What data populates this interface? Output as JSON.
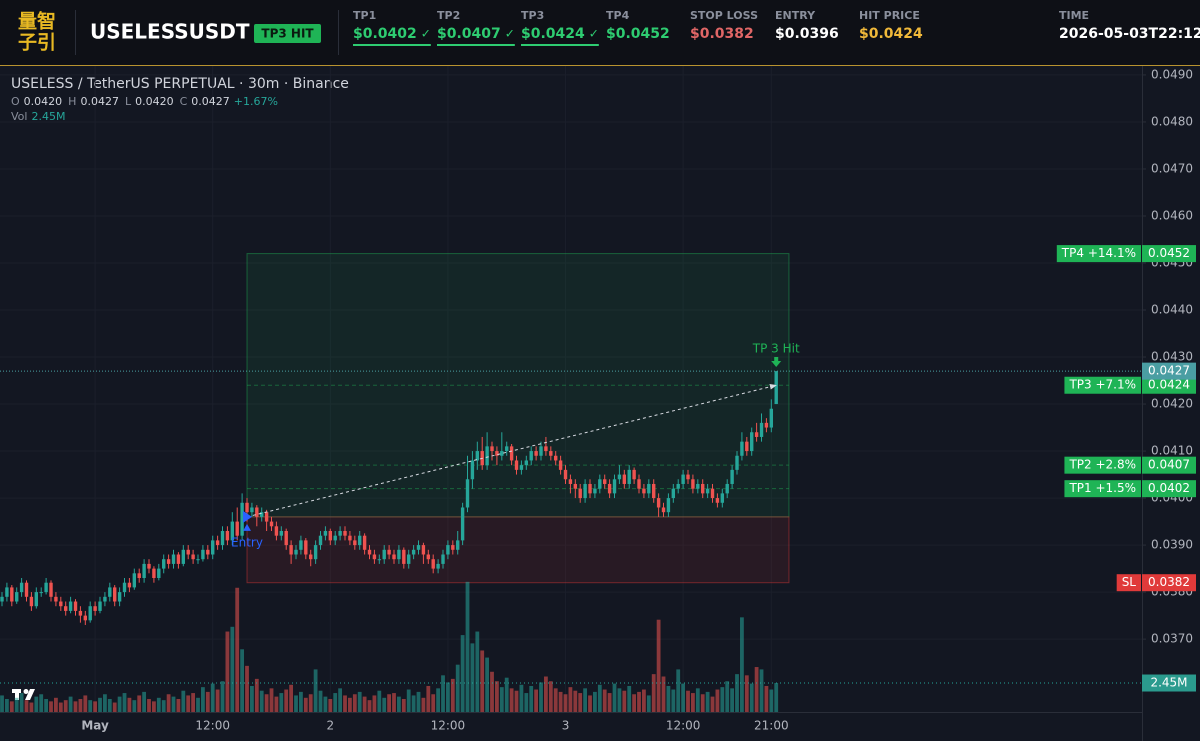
{
  "header": {
    "logo": [
      "量智",
      "子引"
    ],
    "symbol": "USELESSUSDT",
    "badge": "TP3 HIT",
    "fields": [
      {
        "label": "TP1",
        "value": "$0.0402",
        "check": "✓",
        "color": "#2ecc71"
      },
      {
        "label": "TP2",
        "value": "$0.0407",
        "check": "✓",
        "color": "#2ecc71"
      },
      {
        "label": "TP3",
        "value": "$0.0424",
        "check": "✓",
        "color": "#2ecc71"
      },
      {
        "label": "TP4",
        "value": "$0.0452",
        "color": "#2ecc71"
      },
      {
        "label": "STOP LOSS",
        "value": "$0.0382",
        "color": "#e06666"
      },
      {
        "label": "ENTRY",
        "value": "$0.0396",
        "color": "#ffffff"
      },
      {
        "label": "HIT PRICE",
        "value": "$0.0424",
        "color": "#f0b93a"
      },
      {
        "label": "TIME",
        "value": "2026-05-03T22:12",
        "color": "#ffffff"
      }
    ]
  },
  "chart_data": {
    "type": "candlestick",
    "title": "USELESS / TetherUS PERPETUAL · 30m · Binance",
    "legend": {
      "ohlc": [
        {
          "key": "O",
          "value": "0.0420"
        },
        {
          "key": "H",
          "value": "0.0427"
        },
        {
          "key": "L",
          "value": "0.0420"
        },
        {
          "key": "C",
          "value": "0.0427"
        }
      ],
      "change": "+1.67%",
      "vol_key": "Vol",
      "vol": "2.45M"
    },
    "up_color": "#26a69a",
    "down_color": "#ef5350",
    "grid": true,
    "ylim": [
      0.03545,
      0.04919
    ],
    "yticks": [
      {
        "value": 0.049,
        "label": "0.0490"
      },
      {
        "value": 0.048,
        "label": "0.0480"
      },
      {
        "value": 0.047,
        "label": "0.0470"
      },
      {
        "value": 0.046,
        "label": "0.0460"
      },
      {
        "value": 0.045,
        "label": "0.0450"
      },
      {
        "value": 0.044,
        "label": "0.0440"
      },
      {
        "value": 0.043,
        "label": "0.0430"
      },
      {
        "value": 0.042,
        "label": "0.0420"
      },
      {
        "value": 0.041,
        "label": "0.0410"
      },
      {
        "value": 0.04,
        "label": "0.0400"
      },
      {
        "value": 0.039,
        "label": "0.0390"
      },
      {
        "value": 0.038,
        "label": "0.0380"
      },
      {
        "value": 0.037,
        "label": "0.0370"
      }
    ],
    "xlim": [
      -0.41,
      232.65
    ],
    "xticks": [
      {
        "value": 19,
        "label": "May"
      },
      {
        "value": 43,
        "label": "12:00"
      },
      {
        "value": 67,
        "label": "2"
      },
      {
        "value": 91,
        "label": "12:00"
      },
      {
        "value": 115,
        "label": "3"
      },
      {
        "value": 139,
        "label": "12:00"
      },
      {
        "value": 157,
        "label": "21:00"
      }
    ],
    "candles": [
      [
        0.0378,
        0.038,
        0.0377,
        0.0379
      ],
      [
        0.0379,
        0.0382,
        0.0378,
        0.0381
      ],
      [
        0.0381,
        0.03815,
        0.0377,
        0.0378
      ],
      [
        0.0378,
        0.0381,
        0.03775,
        0.038
      ],
      [
        0.038,
        0.0383,
        0.0379,
        0.0382
      ],
      [
        0.0382,
        0.03825,
        0.0378,
        0.0379
      ],
      [
        0.0379,
        0.038,
        0.0376,
        0.0377
      ],
      [
        0.0377,
        0.0381,
        0.03765,
        0.038
      ],
      [
        0.038,
        0.0381,
        0.0379,
        0.038
      ],
      [
        0.038,
        0.0383,
        0.03795,
        0.0382
      ],
      [
        0.0382,
        0.03825,
        0.0378,
        0.0379
      ],
      [
        0.0379,
        0.038,
        0.0377,
        0.0378
      ],
      [
        0.0378,
        0.0379,
        0.0376,
        0.0377
      ],
      [
        0.0377,
        0.0378,
        0.0375,
        0.0376
      ],
      [
        0.0376,
        0.0379,
        0.03755,
        0.0378
      ],
      [
        0.0378,
        0.03785,
        0.0375,
        0.0376
      ],
      [
        0.0376,
        0.0377,
        0.03735,
        0.0375
      ],
      [
        0.0375,
        0.0376,
        0.0373,
        0.0374
      ],
      [
        0.0374,
        0.0378,
        0.03735,
        0.0377
      ],
      [
        0.0377,
        0.0378,
        0.0375,
        0.0376
      ],
      [
        0.0376,
        0.0379,
        0.03755,
        0.0378
      ],
      [
        0.0378,
        0.038,
        0.0377,
        0.0379
      ],
      [
        0.0379,
        0.0382,
        0.0378,
        0.0381
      ],
      [
        0.0381,
        0.03815,
        0.0377,
        0.0378
      ],
      [
        0.0378,
        0.0381,
        0.0377,
        0.038
      ],
      [
        0.038,
        0.0383,
        0.0379,
        0.0382
      ],
      [
        0.0382,
        0.0383,
        0.038,
        0.0381
      ],
      [
        0.0381,
        0.0385,
        0.03805,
        0.0384
      ],
      [
        0.0384,
        0.0385,
        0.0382,
        0.0383
      ],
      [
        0.0383,
        0.0387,
        0.0382,
        0.0386
      ],
      [
        0.0386,
        0.0387,
        0.0384,
        0.0385
      ],
      [
        0.0385,
        0.03855,
        0.0382,
        0.0383
      ],
      [
        0.0383,
        0.0386,
        0.03825,
        0.0385
      ],
      [
        0.0385,
        0.0388,
        0.0384,
        0.0387
      ],
      [
        0.0387,
        0.0388,
        0.0385,
        0.0386
      ],
      [
        0.0386,
        0.0389,
        0.0385,
        0.0388
      ],
      [
        0.0388,
        0.03885,
        0.0385,
        0.0386
      ],
      [
        0.0386,
        0.039,
        0.03855,
        0.0389
      ],
      [
        0.0389,
        0.039,
        0.0387,
        0.0388
      ],
      [
        0.0388,
        0.0389,
        0.0386,
        0.0387
      ],
      [
        0.0387,
        0.0388,
        0.0386,
        0.0387
      ],
      [
        0.0387,
        0.039,
        0.03865,
        0.0389
      ],
      [
        0.0389,
        0.039,
        0.0387,
        0.0388
      ],
      [
        0.0388,
        0.0392,
        0.0387,
        0.0391
      ],
      [
        0.0391,
        0.0392,
        0.0389,
        0.039
      ],
      [
        0.039,
        0.0394,
        0.0389,
        0.0393
      ],
      [
        0.0393,
        0.0394,
        0.039,
        0.0391
      ],
      [
        0.0391,
        0.0397,
        0.039,
        0.0395
      ],
      [
        0.0395,
        0.0398,
        0.0391,
        0.0392
      ],
      [
        0.0392,
        0.0401,
        0.0391,
        0.0399
      ],
      [
        0.0399,
        0.04,
        0.0395,
        0.0397
      ],
      [
        0.0397,
        0.0399,
        0.0396,
        0.0398
      ],
      [
        0.0398,
        0.03985,
        0.0394,
        0.0396
      ],
      [
        0.0396,
        0.0398,
        0.0395,
        0.0397
      ],
      [
        0.0397,
        0.03975,
        0.0393,
        0.0395
      ],
      [
        0.0395,
        0.0396,
        0.0393,
        0.0394
      ],
      [
        0.0394,
        0.0395,
        0.0391,
        0.0392
      ],
      [
        0.0392,
        0.0394,
        0.0391,
        0.0393
      ],
      [
        0.0393,
        0.03935,
        0.0389,
        0.039
      ],
      [
        0.039,
        0.0391,
        0.0386,
        0.0388
      ],
      [
        0.0388,
        0.039,
        0.0387,
        0.0389
      ],
      [
        0.0389,
        0.0392,
        0.0388,
        0.0391
      ],
      [
        0.0391,
        0.03915,
        0.0387,
        0.0388
      ],
      [
        0.0388,
        0.0389,
        0.03855,
        0.0387
      ],
      [
        0.0387,
        0.0391,
        0.0386,
        0.039
      ],
      [
        0.039,
        0.0393,
        0.0389,
        0.0392
      ],
      [
        0.0392,
        0.0394,
        0.0391,
        0.0393
      ],
      [
        0.0393,
        0.03935,
        0.039,
        0.0391
      ],
      [
        0.0391,
        0.0393,
        0.039,
        0.0392
      ],
      [
        0.0392,
        0.0394,
        0.0391,
        0.0393
      ],
      [
        0.0393,
        0.0394,
        0.0391,
        0.0392
      ],
      [
        0.0392,
        0.0393,
        0.039,
        0.0391
      ],
      [
        0.0391,
        0.0392,
        0.0389,
        0.039
      ],
      [
        0.039,
        0.0393,
        0.0389,
        0.0392
      ],
      [
        0.0392,
        0.03925,
        0.0388,
        0.0389
      ],
      [
        0.0389,
        0.039,
        0.0387,
        0.0388
      ],
      [
        0.0388,
        0.0389,
        0.0386,
        0.0387
      ],
      [
        0.0387,
        0.0388,
        0.0386,
        0.0387
      ],
      [
        0.0387,
        0.039,
        0.0386,
        0.0389
      ],
      [
        0.0389,
        0.039,
        0.0387,
        0.0388
      ],
      [
        0.0388,
        0.0389,
        0.0386,
        0.0387
      ],
      [
        0.0387,
        0.039,
        0.0386,
        0.0389
      ],
      [
        0.0389,
        0.03895,
        0.0385,
        0.0386
      ],
      [
        0.0386,
        0.0389,
        0.0385,
        0.0388
      ],
      [
        0.0388,
        0.039,
        0.0387,
        0.0389
      ],
      [
        0.0389,
        0.0391,
        0.0388,
        0.039
      ],
      [
        0.039,
        0.03905,
        0.0386,
        0.0388
      ],
      [
        0.0388,
        0.0389,
        0.0386,
        0.0387
      ],
      [
        0.0387,
        0.0388,
        0.0384,
        0.0385
      ],
      [
        0.0385,
        0.0387,
        0.0384,
        0.0386
      ],
      [
        0.0386,
        0.0389,
        0.0385,
        0.0388
      ],
      [
        0.0388,
        0.0391,
        0.0387,
        0.039
      ],
      [
        0.039,
        0.0391,
        0.0388,
        0.0389
      ],
      [
        0.0389,
        0.0393,
        0.0388,
        0.0391
      ],
      [
        0.0391,
        0.0399,
        0.039,
        0.0398
      ],
      [
        0.0398,
        0.0409,
        0.0397,
        0.0404
      ],
      [
        0.0404,
        0.041,
        0.0402,
        0.0408
      ],
      [
        0.0408,
        0.0412,
        0.0406,
        0.041
      ],
      [
        0.041,
        0.0413,
        0.0406,
        0.0407
      ],
      [
        0.0407,
        0.0414,
        0.0406,
        0.0411
      ],
      [
        0.0411,
        0.0412,
        0.0408,
        0.041
      ],
      [
        0.041,
        0.0411,
        0.0407,
        0.0409
      ],
      [
        0.0409,
        0.0414,
        0.0408,
        0.041
      ],
      [
        0.041,
        0.0412,
        0.0409,
        0.0411
      ],
      [
        0.0411,
        0.04115,
        0.0407,
        0.0408
      ],
      [
        0.0408,
        0.0409,
        0.0405,
        0.0406
      ],
      [
        0.0406,
        0.0408,
        0.0405,
        0.0407
      ],
      [
        0.0407,
        0.0409,
        0.0406,
        0.0408
      ],
      [
        0.0408,
        0.0411,
        0.0407,
        0.041
      ],
      [
        0.041,
        0.0411,
        0.0408,
        0.0409
      ],
      [
        0.0409,
        0.0412,
        0.0408,
        0.0411
      ],
      [
        0.0411,
        0.0413,
        0.0409,
        0.041
      ],
      [
        0.041,
        0.0411,
        0.0408,
        0.0409
      ],
      [
        0.0409,
        0.041,
        0.0407,
        0.0408
      ],
      [
        0.0408,
        0.0409,
        0.0405,
        0.0406
      ],
      [
        0.0406,
        0.0407,
        0.0403,
        0.0404
      ],
      [
        0.0404,
        0.0405,
        0.0401,
        0.0403
      ],
      [
        0.0403,
        0.0404,
        0.04,
        0.0402
      ],
      [
        0.0402,
        0.0403,
        0.0399,
        0.04
      ],
      [
        0.04,
        0.0404,
        0.0399,
        0.0403
      ],
      [
        0.0403,
        0.0404,
        0.04,
        0.0401
      ],
      [
        0.0401,
        0.0403,
        0.04,
        0.0402
      ],
      [
        0.0402,
        0.0405,
        0.0401,
        0.0404
      ],
      [
        0.0404,
        0.0405,
        0.0402,
        0.0403
      ],
      [
        0.0403,
        0.0404,
        0.04,
        0.0401
      ],
      [
        0.0401,
        0.0405,
        0.04,
        0.0404
      ],
      [
        0.0404,
        0.0407,
        0.0403,
        0.0405
      ],
      [
        0.0405,
        0.0406,
        0.0402,
        0.0403
      ],
      [
        0.0403,
        0.0407,
        0.0402,
        0.0406
      ],
      [
        0.0406,
        0.04065,
        0.0403,
        0.0404
      ],
      [
        0.0404,
        0.0405,
        0.0401,
        0.0402
      ],
      [
        0.0402,
        0.0403,
        0.04,
        0.0401
      ],
      [
        0.0401,
        0.0404,
        0.04,
        0.0403
      ],
      [
        0.0403,
        0.0404,
        0.0399,
        0.04
      ],
      [
        0.04,
        0.0401,
        0.0396,
        0.0398
      ],
      [
        0.0398,
        0.0399,
        0.0396,
        0.0397
      ],
      [
        0.0397,
        0.0401,
        0.0396,
        0.04
      ],
      [
        0.04,
        0.0403,
        0.0399,
        0.0402
      ],
      [
        0.0402,
        0.0404,
        0.0401,
        0.0403
      ],
      [
        0.0403,
        0.0406,
        0.0402,
        0.0405
      ],
      [
        0.0405,
        0.0406,
        0.0403,
        0.0404
      ],
      [
        0.0404,
        0.0405,
        0.0401,
        0.0402
      ],
      [
        0.0402,
        0.0404,
        0.0401,
        0.0403
      ],
      [
        0.0403,
        0.0404,
        0.04,
        0.0401
      ],
      [
        0.0401,
        0.0403,
        0.04,
        0.0402
      ],
      [
        0.0402,
        0.0403,
        0.0399,
        0.04
      ],
      [
        0.04,
        0.0401,
        0.0398,
        0.0399
      ],
      [
        0.0399,
        0.0402,
        0.0398,
        0.0401
      ],
      [
        0.0401,
        0.0404,
        0.04,
        0.0403
      ],
      [
        0.0403,
        0.0407,
        0.0402,
        0.0406
      ],
      [
        0.0406,
        0.041,
        0.0405,
        0.0409
      ],
      [
        0.0409,
        0.0414,
        0.0408,
        0.0412
      ],
      [
        0.0412,
        0.0413,
        0.0409,
        0.041
      ],
      [
        0.041,
        0.0415,
        0.0409,
        0.0414
      ],
      [
        0.0414,
        0.0416,
        0.0412,
        0.0413
      ],
      [
        0.0413,
        0.0418,
        0.0412,
        0.0416
      ],
      [
        0.0416,
        0.0417,
        0.0414,
        0.0415
      ],
      [
        0.0415,
        0.0421,
        0.0414,
        0.0419
      ],
      [
        0.042,
        0.0427,
        0.042,
        0.0427
      ]
    ],
    "volumes": [
      1.4,
      1.1,
      0.9,
      1.2,
      1.6,
      1.0,
      0.8,
      1.3,
      1.5,
      1.1,
      0.9,
      1.2,
      0.8,
      1.0,
      1.3,
      0.9,
      1.1,
      1.4,
      1.0,
      0.9,
      1.2,
      1.5,
      1.1,
      0.8,
      1.3,
      1.6,
      1.2,
      1.0,
      1.4,
      1.7,
      1.1,
      0.9,
      1.2,
      1.0,
      1.5,
      1.3,
      1.1,
      1.8,
      1.4,
      1.6,
      1.2,
      2.1,
      1.7,
      2.4,
      1.9,
      2.6,
      6.8,
      7.2,
      10.5,
      5.3,
      3.9,
      2.2,
      2.8,
      1.8,
      1.5,
      2.0,
      1.3,
      1.6,
      1.9,
      2.3,
      1.4,
      1.7,
      1.2,
      1.5,
      3.6,
      1.8,
      1.3,
      1.1,
      1.6,
      2.0,
      1.4,
      1.2,
      1.5,
      1.7,
      1.3,
      1.0,
      1.4,
      1.8,
      1.2,
      1.5,
      1.6,
      1.3,
      1.1,
      1.9,
      1.4,
      1.7,
      1.2,
      2.2,
      1.5,
      2.0,
      3.1,
      2.5,
      2.8,
      4.0,
      6.5,
      11.0,
      5.8,
      6.8,
      5.2,
      4.6,
      3.4,
      2.6,
      2.1,
      2.9,
      2.0,
      1.8,
      2.3,
      1.6,
      2.2,
      1.9,
      2.5,
      3.0,
      2.6,
      2.0,
      1.7,
      1.5,
      2.1,
      1.8,
      1.6,
      2.0,
      1.4,
      1.7,
      2.3,
      1.9,
      1.6,
      2.4,
      2.0,
      1.8,
      2.2,
      1.5,
      1.7,
      1.9,
      1.4,
      3.2,
      7.8,
      3.0,
      2.2,
      1.9,
      3.6,
      2.4,
      1.8,
      1.6,
      2.0,
      1.5,
      1.7,
      1.3,
      1.9,
      2.1,
      2.6,
      2.0,
      3.2,
      8.0,
      3.1,
      2.4,
      3.8,
      3.6,
      2.2,
      1.9,
      2.45
    ],
    "volume_lim": [
      0,
      54.6
    ],
    "volume_tag_label": "2.45M",
    "position": {
      "entry": 0.0396,
      "stop": 0.0382,
      "targets": [
        0.0402,
        0.0407,
        0.0424,
        0.0452
      ],
      "target_labels": [
        "TP1 +1.5%",
        "TP2 +2.8%",
        "TP3 +7.1%",
        "TP4 +14.1%"
      ],
      "stop_label": "SL",
      "start": 50,
      "end": 160.6,
      "hit_index": 158,
      "entry_label": "Entry",
      "hit_label": "TP 3 Hit",
      "target_color": "#1fb456",
      "stop_color": "#e03a3a",
      "entry_color": "#2962ff"
    }
  }
}
